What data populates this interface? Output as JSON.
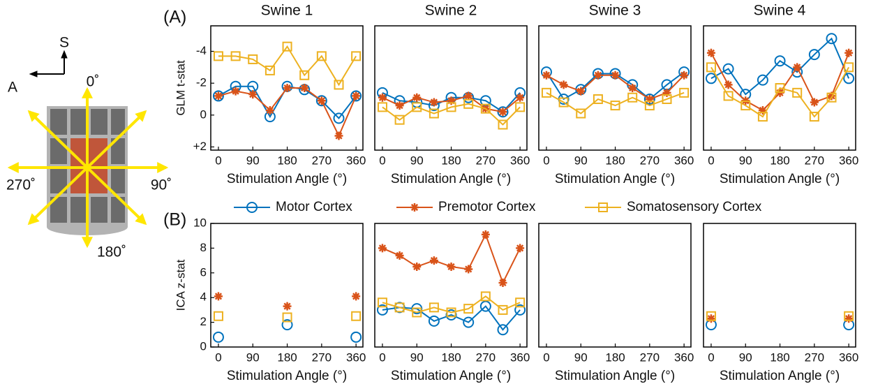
{
  "panel_labels": [
    "(A)",
    "(B)"
  ],
  "diagram": {
    "labels": [
      "S",
      "A",
      "0˚",
      "90˚",
      "180˚",
      "270˚"
    ]
  },
  "chart_data": [
    {
      "type": "line",
      "title": "Swine 1",
      "y_label": "GLM t-stat",
      "x_label": "Stimulation Angle (°)",
      "x": [
        0,
        45,
        90,
        135,
        180,
        225,
        270,
        315,
        360
      ],
      "xlim": [
        -20,
        378
      ],
      "xticks": [
        0,
        90,
        180,
        270,
        360
      ],
      "ylim": [
        2.2,
        -5.6
      ],
      "yticks": [
        -4,
        -2,
        0,
        {
          "value": 2,
          "label": "+2"
        }
      ],
      "series": [
        {
          "name": "Motor Cortex",
          "color": "#0072bd",
          "marker": "circle",
          "values": [
            -1.2,
            -1.8,
            -1.8,
            0.1,
            -1.8,
            -1.6,
            -0.9,
            0.2,
            -1.2
          ]
        },
        {
          "name": "Premotor Cortex",
          "color": "#d95319",
          "marker": "asterisk",
          "values": [
            -1.2,
            -1.5,
            -1.3,
            -0.3,
            -1.7,
            -1.7,
            -0.9,
            1.3,
            -1.2
          ]
        },
        {
          "name": "Somatosensory Cortex",
          "color": "#edb120",
          "marker": "square",
          "values": [
            -3.7,
            -3.7,
            -3.5,
            -2.8,
            -4.3,
            -2.5,
            -3.7,
            -1.9,
            -3.7
          ]
        }
      ]
    },
    {
      "type": "line",
      "title": "Swine 2",
      "x_label": "Stimulation Angle (°)",
      "x": [
        0,
        45,
        90,
        135,
        180,
        225,
        270,
        315,
        360
      ],
      "xlim": [
        -20,
        378
      ],
      "xticks": [
        0,
        90,
        180,
        270,
        360
      ],
      "ylim": [
        2.2,
        -5.6
      ],
      "series": [
        {
          "name": "Motor Cortex",
          "color": "#0072bd",
          "marker": "circle",
          "values": [
            -1.4,
            -0.9,
            -0.8,
            -0.6,
            -1.1,
            -1.1,
            -0.9,
            -0.2,
            -1.4
          ]
        },
        {
          "name": "Premotor Cortex",
          "color": "#d95319",
          "marker": "asterisk",
          "values": [
            -1.1,
            -0.6,
            -1.1,
            -0.8,
            -0.9,
            -1.2,
            -0.4,
            -0.2,
            -1.1
          ]
        },
        {
          "name": "Somatosensory Cortex",
          "color": "#edb120",
          "marker": "square",
          "values": [
            -0.5,
            0.3,
            -0.5,
            -0.1,
            -0.5,
            -0.7,
            -0.4,
            0.6,
            -0.5
          ]
        }
      ]
    },
    {
      "type": "line",
      "title": "Swine 3",
      "x_label": "Stimulation Angle (°)",
      "x": [
        0,
        45,
        90,
        135,
        180,
        225,
        270,
        315,
        360
      ],
      "xlim": [
        -20,
        378
      ],
      "xticks": [
        0,
        90,
        180,
        270,
        360
      ],
      "ylim": [
        2.2,
        -5.6
      ],
      "series": [
        {
          "name": "Motor Cortex",
          "color": "#0072bd",
          "marker": "circle",
          "values": [
            -2.7,
            -1.0,
            -1.6,
            -2.6,
            -2.6,
            -1.9,
            -1.0,
            -1.9,
            -2.7
          ]
        },
        {
          "name": "Premotor Cortex",
          "color": "#d95319",
          "marker": "asterisk",
          "values": [
            -2.5,
            -1.9,
            -1.5,
            -2.5,
            -2.5,
            -1.7,
            -1.0,
            -1.4,
            -2.5
          ]
        },
        {
          "name": "Somatosensory Cortex",
          "color": "#edb120",
          "marker": "square",
          "values": [
            -1.4,
            -0.8,
            -0.1,
            -1.0,
            -0.6,
            -1.1,
            -0.6,
            -1.0,
            -1.4
          ]
        }
      ]
    },
    {
      "type": "line",
      "title": "Swine 4",
      "x_label": "Stimulation Angle (°)",
      "x": [
        0,
        45,
        90,
        135,
        180,
        225,
        270,
        315,
        360
      ],
      "xlim": [
        -20,
        378
      ],
      "xticks": [
        0,
        90,
        180,
        270,
        360
      ],
      "ylim": [
        2.2,
        -5.6
      ],
      "series": [
        {
          "name": "Motor Cortex",
          "color": "#0072bd",
          "marker": "circle",
          "values": [
            -2.3,
            -2.9,
            -1.3,
            -2.2,
            -3.4,
            -2.7,
            -3.8,
            -4.8,
            -2.3
          ]
        },
        {
          "name": "Premotor Cortex",
          "color": "#d95319",
          "marker": "asterisk",
          "values": [
            -3.9,
            -1.9,
            -0.9,
            -0.3,
            -1.4,
            -3.0,
            -0.8,
            -1.2,
            -3.9
          ]
        },
        {
          "name": "Somatosensory Cortex",
          "color": "#edb120",
          "marker": "square",
          "values": [
            -3.0,
            -1.2,
            -0.6,
            0.1,
            -1.7,
            -1.4,
            0.1,
            -1.1,
            -3.0
          ]
        }
      ]
    },
    {
      "type": "line",
      "y_label": "ICA z-stat",
      "x_label": "Stimulation Angle (°)",
      "x": [
        0,
        45,
        90,
        135,
        180,
        225,
        270,
        315,
        360
      ],
      "xlim": [
        -20,
        378
      ],
      "xticks": [
        0,
        90,
        180,
        270,
        360
      ],
      "ylim": [
        0,
        10
      ],
      "yticks": [
        0,
        2,
        4,
        6,
        8,
        10
      ],
      "series": [
        {
          "name": "Motor Cortex",
          "color": "#0072bd",
          "marker": "circle",
          "values": [
            0.8,
            null,
            null,
            null,
            1.8,
            null,
            null,
            null,
            0.8
          ]
        },
        {
          "name": "Premotor Cortex",
          "color": "#d95319",
          "marker": "asterisk",
          "values": [
            4.1,
            null,
            null,
            null,
            3.3,
            null,
            null,
            null,
            4.1
          ]
        },
        {
          "name": "Somatosensory Cortex",
          "color": "#edb120",
          "marker": "square",
          "values": [
            2.5,
            null,
            null,
            null,
            2.4,
            null,
            null,
            null,
            2.5
          ]
        }
      ]
    },
    {
      "type": "line",
      "x_label": "Stimulation Angle (°)",
      "x": [
        0,
        45,
        90,
        135,
        180,
        225,
        270,
        315,
        360
      ],
      "xlim": [
        -20,
        378
      ],
      "xticks": [
        0,
        90,
        180,
        270,
        360
      ],
      "ylim": [
        0,
        10
      ],
      "series": [
        {
          "name": "Motor Cortex",
          "color": "#0072bd",
          "marker": "circle",
          "values": [
            3.0,
            3.2,
            3.1,
            2.1,
            2.6,
            2.0,
            3.3,
            1.4,
            3.0
          ]
        },
        {
          "name": "Premotor Cortex",
          "color": "#d95319",
          "marker": "asterisk",
          "values": [
            8.0,
            7.4,
            6.5,
            7.0,
            6.5,
            6.3,
            9.1,
            5.2,
            8.0
          ]
        },
        {
          "name": "Somatosensory Cortex",
          "color": "#edb120",
          "marker": "square",
          "values": [
            3.6,
            3.2,
            2.8,
            3.2,
            2.8,
            3.1,
            4.1,
            3.0,
            3.6
          ]
        }
      ]
    },
    {
      "type": "line",
      "x_label": "Stimulation Angle (°)",
      "x": [
        0,
        45,
        90,
        135,
        180,
        225,
        270,
        315,
        360
      ],
      "xlim": [
        -20,
        378
      ],
      "xticks": [
        0,
        90,
        180,
        270,
        360
      ],
      "ylim": [
        0,
        10
      ],
      "series": [
        {
          "name": "Motor Cortex",
          "color": "#0072bd",
          "marker": "circle",
          "values": [
            null,
            null,
            null,
            null,
            null,
            null,
            null,
            null,
            null
          ]
        },
        {
          "name": "Premotor Cortex",
          "color": "#d95319",
          "marker": "asterisk",
          "values": [
            null,
            null,
            null,
            null,
            null,
            null,
            null,
            null,
            null
          ]
        },
        {
          "name": "Somatosensory Cortex",
          "color": "#edb120",
          "marker": "square",
          "values": [
            null,
            null,
            null,
            null,
            null,
            null,
            null,
            null,
            null
          ]
        }
      ]
    },
    {
      "type": "line",
      "x_label": "Stimulation Angle (°)",
      "x": [
        0,
        45,
        90,
        135,
        180,
        225,
        270,
        315,
        360
      ],
      "xlim": [
        -20,
        378
      ],
      "xticks": [
        0,
        90,
        180,
        270,
        360
      ],
      "ylim": [
        0,
        10
      ],
      "series": [
        {
          "name": "Motor Cortex",
          "color": "#0072bd",
          "marker": "circle",
          "values": [
            1.8,
            null,
            null,
            null,
            null,
            null,
            null,
            null,
            1.8
          ]
        },
        {
          "name": "Premotor Cortex",
          "color": "#d95319",
          "marker": "asterisk",
          "values": [
            2.3,
            null,
            null,
            null,
            null,
            null,
            null,
            null,
            2.3
          ]
        },
        {
          "name": "Somatosensory Cortex",
          "color": "#edb120",
          "marker": "square",
          "values": [
            2.5,
            null,
            null,
            null,
            null,
            null,
            null,
            null,
            2.5
          ]
        }
      ]
    }
  ]
}
